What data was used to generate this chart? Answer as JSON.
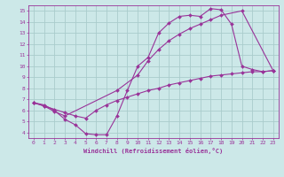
{
  "xlabel": "Windchill (Refroidissement éolien,°C)",
  "background_color": "#cce8e8",
  "grid_color": "#aacccc",
  "line_color": "#993399",
  "xlim": [
    -0.5,
    23.5
  ],
  "ylim": [
    3.5,
    15.5
  ],
  "xticks": [
    0,
    1,
    2,
    3,
    4,
    5,
    6,
    7,
    8,
    9,
    10,
    11,
    12,
    13,
    14,
    15,
    16,
    17,
    18,
    19,
    20,
    21,
    22,
    23
  ],
  "yticks": [
    4,
    5,
    6,
    7,
    8,
    9,
    10,
    11,
    12,
    13,
    14,
    15
  ],
  "curve1_x": [
    0,
    1,
    2,
    3,
    4,
    5,
    6,
    7,
    8,
    9,
    10,
    11,
    12,
    13,
    14,
    15,
    16,
    17,
    18,
    19,
    20,
    21,
    22,
    23
  ],
  "curve1_y": [
    6.7,
    6.5,
    6.0,
    5.2,
    4.7,
    3.9,
    3.8,
    3.8,
    5.5,
    7.8,
    10.0,
    10.8,
    13.0,
    13.9,
    14.5,
    14.6,
    14.5,
    15.2,
    15.1,
    13.8,
    10.0,
    9.7,
    9.5,
    9.6
  ],
  "curve2_x": [
    0,
    1,
    2,
    3,
    8,
    10,
    11,
    12,
    13,
    14,
    15,
    16,
    17,
    18,
    20,
    23
  ],
  "curve2_y": [
    6.7,
    6.4,
    5.9,
    5.5,
    7.8,
    9.2,
    10.5,
    11.5,
    12.3,
    12.9,
    13.4,
    13.8,
    14.2,
    14.6,
    15.0,
    9.6
  ],
  "curve3_x": [
    0,
    1,
    2,
    3,
    4,
    5,
    6,
    7,
    8,
    9,
    10,
    11,
    12,
    13,
    14,
    15,
    16,
    17,
    18,
    19,
    20,
    21,
    22,
    23
  ],
  "curve3_y": [
    6.7,
    6.4,
    6.1,
    5.8,
    5.5,
    5.3,
    6.0,
    6.5,
    6.9,
    7.2,
    7.5,
    7.8,
    8.0,
    8.3,
    8.5,
    8.7,
    8.9,
    9.1,
    9.2,
    9.3,
    9.4,
    9.5,
    9.5,
    9.6
  ]
}
